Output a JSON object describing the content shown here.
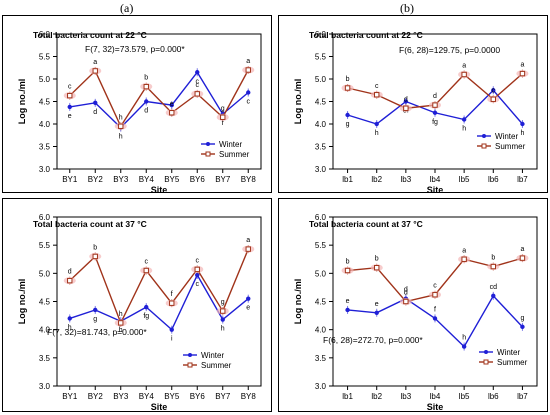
{
  "panel_labels": [
    "(a)",
    "(b)"
  ],
  "chart_data": [
    {
      "type": "line",
      "title": "Total bacteria count at 22 °C",
      "stat_text": "F(7, 32)=73.579, p=0.000*",
      "xlabel": "Site",
      "ylabel": "Log no./ml",
      "categories": [
        "BY1",
        "BY2",
        "BY3",
        "BY4",
        "BY5",
        "BY6",
        "BY7",
        "BY8"
      ],
      "yticks": [
        "3.0",
        "3.5",
        "4.0",
        "4.5",
        "5.0",
        "5.5",
        "6.0"
      ],
      "ylim": [
        3.0,
        6.0
      ],
      "grid": false,
      "legend_position": "bottom-right",
      "series": [
        {
          "name": "Winter",
          "color": "#1f1fd6",
          "values": [
            4.38,
            4.47,
            3.92,
            4.5,
            4.42,
            5.15,
            4.22,
            4.7
          ],
          "letters": [
            "e",
            "d",
            "h",
            "d",
            "e",
            "c",
            "f",
            "c"
          ]
        },
        {
          "name": "Summer",
          "color": "#a0331a",
          "values": [
            4.63,
            5.18,
            3.95,
            4.83,
            4.25,
            4.67,
            4.15,
            5.2
          ],
          "letters": [
            "c",
            "a",
            "h",
            "b",
            "e",
            "c",
            "g",
            "a"
          ]
        }
      ]
    },
    {
      "type": "line",
      "title": "Total bacteria count at 22 °C",
      "stat_text": "F(6, 28)=129.75, p=0.0000",
      "xlabel": "Site",
      "ylabel": "Log no./ml",
      "categories": [
        "lb1",
        "lb2",
        "lb3",
        "lb4",
        "lb5",
        "lb6",
        "lb7"
      ],
      "yticks": [
        "3.0",
        "3.5",
        "4.0",
        "4.5",
        "5.0",
        "5.5",
        "6.0"
      ],
      "ylim": [
        3.0,
        6.0
      ],
      "grid": false,
      "legend_position": "right",
      "series": [
        {
          "name": "Winter",
          "color": "#1f1fd6",
          "values": [
            4.2,
            4.0,
            4.5,
            4.25,
            4.1,
            4.75,
            4.0
          ],
          "letters": [
            "g",
            "h",
            "ef",
            "fg",
            "h",
            "b",
            "h"
          ]
        },
        {
          "name": "Summer",
          "color": "#a0331a",
          "values": [
            4.8,
            4.65,
            4.35,
            4.42,
            5.1,
            4.55,
            5.12
          ],
          "letters": [
            "b",
            "c",
            "d",
            "d",
            "a",
            "c",
            "a"
          ]
        }
      ]
    },
    {
      "type": "line",
      "title": "Total bacteria count at 37 °C",
      "stat_text": "F(7, 32)=81.743, p=0.000*",
      "xlabel": "Site",
      "ylabel": "Log no./ml",
      "categories": [
        "BY1",
        "BY2",
        "BY3",
        "BY4",
        "BY5",
        "BY6",
        "BY7",
        "BY8"
      ],
      "yticks": [
        "3.0",
        "3.5",
        "4.0",
        "4.5",
        "5.0",
        "5.5",
        "6.0"
      ],
      "ylim": [
        3.0,
        6.0
      ],
      "grid": false,
      "legend_position": "bottom-right",
      "series": [
        {
          "name": "Winter",
          "color": "#1f1fd6",
          "values": [
            4.2,
            4.35,
            4.15,
            4.4,
            4.0,
            4.97,
            4.18,
            4.55
          ],
          "letters": [
            "h",
            "g",
            "h",
            "fg",
            "i",
            "c",
            "h",
            "e"
          ]
        },
        {
          "name": "Summer",
          "color": "#a0331a",
          "values": [
            4.87,
            5.3,
            4.12,
            5.05,
            4.47,
            5.07,
            4.33,
            5.43
          ],
          "letters": [
            "d",
            "b",
            "h",
            "c",
            "f",
            "c",
            "g",
            "a"
          ]
        }
      ]
    },
    {
      "type": "line",
      "title": "Total bacteria count at 37 °C",
      "stat_text": "F(6, 28)=272.70, p=0.000*",
      "xlabel": "Site",
      "ylabel": "Log no./ml",
      "categories": [
        "lb1",
        "lb2",
        "lb3",
        "lb4",
        "lb5",
        "lb6",
        "lb7"
      ],
      "yticks": [
        "3.0",
        "3.5",
        "4.0",
        "4.5",
        "5.0",
        "5.5",
        "6.0"
      ],
      "ylim": [
        3.0,
        6.0
      ],
      "grid": false,
      "legend_position": "bottom-right",
      "series": [
        {
          "name": "Winter",
          "color": "#1f1fd6",
          "values": [
            4.35,
            4.3,
            4.55,
            4.2,
            3.7,
            4.6,
            4.05
          ],
          "letters": [
            "e",
            "e",
            "d",
            "f",
            "h",
            "cd",
            "g"
          ]
        },
        {
          "name": "Summer",
          "color": "#a0331a",
          "values": [
            5.05,
            5.1,
            4.5,
            4.62,
            5.25,
            5.12,
            5.27
          ],
          "letters": [
            "b",
            "b",
            "d",
            "c",
            "a",
            "b",
            "a"
          ]
        }
      ]
    }
  ]
}
